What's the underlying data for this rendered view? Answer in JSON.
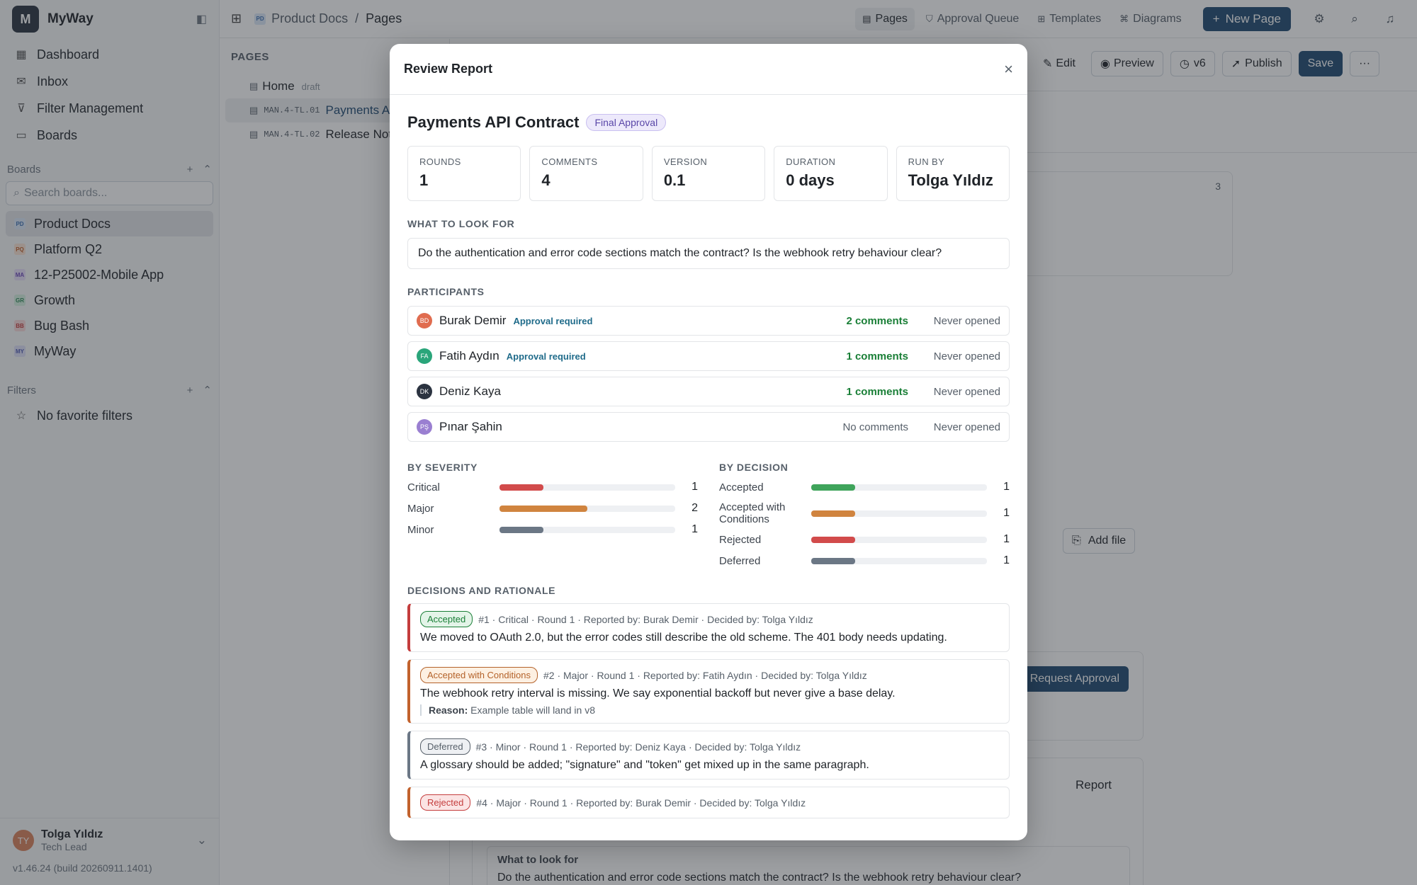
{
  "workspace": {
    "name": "MyWay",
    "logo": "M"
  },
  "sidebar": {
    "nav": [
      {
        "label": "Dashboard",
        "icon": "grid-icon"
      },
      {
        "label": "Inbox",
        "icon": "inbox-icon"
      },
      {
        "label": "Filter Management",
        "icon": "filter-icon"
      },
      {
        "label": "Boards",
        "icon": "board-icon"
      }
    ],
    "boards_heading": "Boards",
    "search_placeholder": "Search boards...",
    "boards": [
      {
        "badge": "PD",
        "label": "Product Docs",
        "color": "#3c6fb3",
        "bg": "#dbe8f7"
      },
      {
        "badge": "PQ",
        "label": "Platform Q2",
        "color": "#c2622d",
        "bg": "#fbe3d4"
      },
      {
        "badge": "MA",
        "label": "12-P25002-Mobile App",
        "color": "#6b48b8",
        "bg": "#e8defa"
      },
      {
        "badge": "GR",
        "label": "Growth",
        "color": "#2f8a56",
        "bg": "#d6f0e1"
      },
      {
        "badge": "BB",
        "label": "Bug Bash",
        "color": "#c43d3d",
        "bg": "#f8d9d9"
      },
      {
        "badge": "MY",
        "label": "MyWay",
        "color": "#4f5bb5",
        "bg": "#dee1f7"
      }
    ],
    "filters_heading": "Filters",
    "no_filters": "No favorite filters",
    "user": {
      "initials": "TY",
      "name": "Tolga Yıldız",
      "role": "Tech Lead"
    },
    "version": "v1.46.24 (build 20260911.1401)"
  },
  "topbar": {
    "breadcrumb_badge": "PD",
    "breadcrumb": [
      "Product Docs",
      "Pages"
    ],
    "tabs": [
      "Pages",
      "Approval Queue",
      "Templates",
      "Diagrams"
    ],
    "new_page": "New Page"
  },
  "pages_panel": {
    "heading": "PAGES",
    "items": [
      {
        "code": "",
        "label": "Home",
        "note": "draft"
      },
      {
        "code": "MAN.4-TL.01",
        "label": "Payments API Contract",
        "note": ""
      },
      {
        "code": "MAN.4-TL.02",
        "label": "Release Notes",
        "note": ""
      }
    ]
  },
  "editor": {
    "edit": "Edit",
    "preview": "Preview",
    "version": "v6",
    "publish": "Publish",
    "save": "Save",
    "more": "···",
    "add_file": "Add file",
    "request_approval": "Request Approval",
    "report": "Report",
    "count": "3",
    "what_label": "What to look for",
    "what_text": "Do the authentication and error code sections match the contract? Is the webhook retry behaviour clear?"
  },
  "modal": {
    "title": "Review Report",
    "doc_title": "Payments API Contract",
    "stage": "Final Approval",
    "stats": [
      {
        "label": "ROUNDS",
        "value": "1"
      },
      {
        "label": "COMMENTS",
        "value": "4"
      },
      {
        "label": "VERSION",
        "value": "0.1"
      },
      {
        "label": "DURATION",
        "value": "0 days"
      },
      {
        "label": "RUN BY",
        "value": "Tolga Yıldız"
      }
    ],
    "look_heading": "WHAT TO LOOK FOR",
    "look_text": "Do the authentication and error code sections match the contract? Is the webhook retry behaviour clear?",
    "participants_heading": "PARTICIPANTS",
    "participants": [
      {
        "initials": "BD",
        "name": "Burak Demir",
        "req": "Approval required",
        "comments": "2 comments",
        "opened": "Never opened",
        "color": "#e06c4f"
      },
      {
        "initials": "FA",
        "name": "Fatih Aydın",
        "req": "Approval required",
        "comments": "1 comments",
        "opened": "Never opened",
        "color": "#2aa57a"
      },
      {
        "initials": "DK",
        "name": "Deniz Kaya",
        "req": "",
        "comments": "1 comments",
        "opened": "Never opened",
        "color": "#2b3340"
      },
      {
        "initials": "PŞ",
        "name": "Pınar Şahin",
        "req": "",
        "comments": "No comments",
        "opened": "Never opened",
        "color": "#9a7fd1"
      }
    ],
    "severity_heading": "BY SEVERITY",
    "severity": [
      {
        "label": "Critical",
        "count": "1",
        "fraction": 0.25,
        "color": "#d24b4b"
      },
      {
        "label": "Major",
        "count": "2",
        "fraction": 0.5,
        "color": "#d0843f"
      },
      {
        "label": "Minor",
        "count": "1",
        "fraction": 0.25,
        "color": "#6b7785"
      }
    ],
    "decision_heading": "BY DECISION",
    "decision": [
      {
        "label": "Accepted",
        "count": "1",
        "fraction": 0.25,
        "color": "#3fa45b"
      },
      {
        "label": "Accepted with Conditions",
        "count": "1",
        "fraction": 0.25,
        "color": "#d0843f"
      },
      {
        "label": "Rejected",
        "count": "1",
        "fraction": 0.25,
        "color": "#d24b4b"
      },
      {
        "label": "Deferred",
        "count": "1",
        "fraction": 0.25,
        "color": "#6b7785"
      }
    ],
    "decisions_heading": "DECISIONS AND RATIONALE",
    "decisions": [
      {
        "tag": "Accepted",
        "meta": "#1 · Critical · Round 1 · Reported by: Burak Demir · Decided by: Tolga Yıldız",
        "text": "We moved to OAuth 2.0, but the error codes still describe the old scheme. The 401 body needs updating.",
        "reason_label": "",
        "reason": "",
        "color": "#c43d3d",
        "tag_color": "#1a7f37",
        "tag_bg": "#e3f4e8"
      },
      {
        "tag": "Accepted with Conditions",
        "meta": "#2 · Major · Round 1 · Reported by: Fatih Aydın · Decided by: Tolga Yıldız",
        "text": "The webhook retry interval is missing. We say exponential backoff but never give a base delay.",
        "reason_label": "Reason:",
        "reason": "Example table will land in v8",
        "color": "#c2622d",
        "tag_color": "#b4622a",
        "tag_bg": "#fdf0e2"
      },
      {
        "tag": "Deferred",
        "meta": "#3 · Minor · Round 1 · Reported by: Deniz Kaya · Decided by: Tolga Yıldız",
        "text": "A glossary should be added; \"signature\" and \"token\" get mixed up in the same paragraph.",
        "reason_label": "",
        "reason": "",
        "color": "#6b7785",
        "tag_color": "#57606a",
        "tag_bg": "#eef0f3"
      },
      {
        "tag": "Rejected",
        "meta": "#4 · Major · Round 1 · Reported by: Burak Demir · Decided by: Tolga Yıldız",
        "text": "",
        "reason_label": "",
        "reason": "",
        "color": "#c2622d",
        "tag_color": "#c43d3d",
        "tag_bg": "#fbe4e4"
      }
    ]
  }
}
